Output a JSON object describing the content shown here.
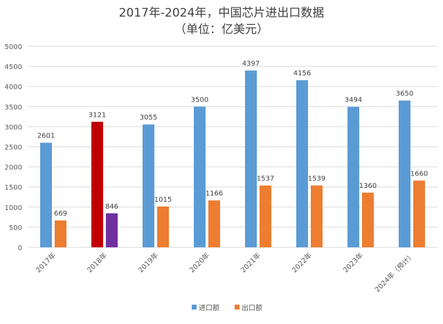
{
  "chart_data": {
    "type": "bar",
    "title": "2017年-2024年，中国芯片进出口数据",
    "subtitle": "（单位：亿美元）",
    "categories": [
      "2017年",
      "2018年",
      "2019年",
      "2020年",
      "2021年",
      "2022年",
      "2023年",
      "2024年（预计）"
    ],
    "series": [
      {
        "name": "进口额",
        "values": [
          2601,
          3121,
          3055,
          3500,
          4397,
          4156,
          3494,
          3650
        ],
        "color": "#5B9BD5"
      },
      {
        "name": "出口额",
        "values": [
          669,
          846,
          1015,
          1166,
          1537,
          1539,
          1360,
          1660
        ],
        "color": "#ED7D31"
      }
    ],
    "highlight": {
      "category_index": 1,
      "colors": [
        "#C00000",
        "#7030A0"
      ]
    },
    "ylim": [
      0,
      5000
    ],
    "yticks": [
      0,
      500,
      1000,
      1500,
      2000,
      2500,
      3000,
      3500,
      4000,
      4500,
      5000
    ],
    "grid": true,
    "legend_position": "bottom-center",
    "data_labels": true
  }
}
